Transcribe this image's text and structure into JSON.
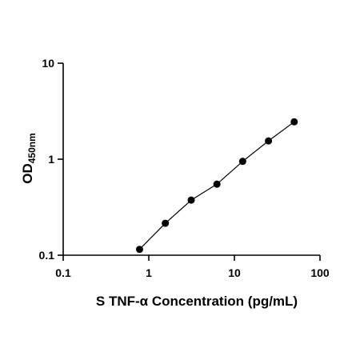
{
  "chart_data": {
    "type": "scatter",
    "title": "",
    "xlabel": "S TNF-α Concentration (pg/mL)",
    "ylabel": {
      "main": "OD",
      "subscript": "450nm"
    },
    "xscale": "log",
    "yscale": "log",
    "xlim": [
      0.1,
      100
    ],
    "ylim": [
      0.1,
      10
    ],
    "x_ticks": [
      0.1,
      1,
      10,
      100
    ],
    "x_tick_labels": [
      "0.1",
      "1",
      "10",
      "100"
    ],
    "y_ticks": [
      0.1,
      1,
      10
    ],
    "y_tick_labels": [
      "0.1",
      "1",
      "10"
    ],
    "grid": false,
    "legend": "none",
    "series": [
      {
        "x": [
          0.78,
          1.56,
          3.13,
          6.25,
          12.5,
          25,
          50
        ],
        "y": [
          0.115,
          0.215,
          0.375,
          0.55,
          0.95,
          1.55,
          2.45
        ],
        "fit_line": true
      }
    ],
    "colors": {
      "points": "#000000",
      "line": "#000000",
      "axes": "#000000"
    }
  }
}
